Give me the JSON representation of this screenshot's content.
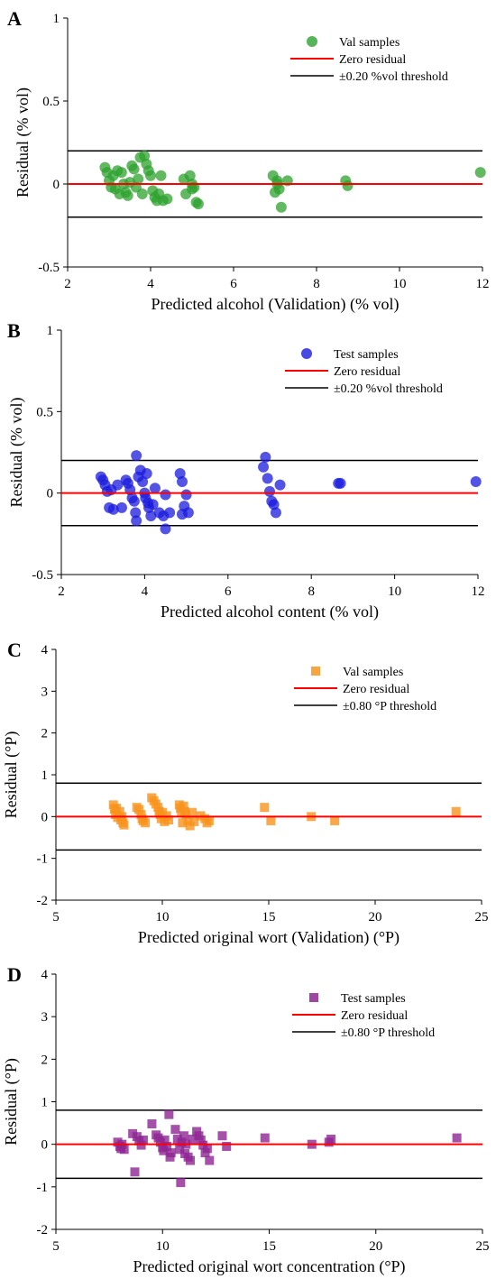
{
  "chart_data": [
    {
      "panel_label": "A",
      "type": "scatter",
      "xlabel": "Predicted alcohol (Validation) (% vol)",
      "ylabel": "Residual (% vol)",
      "xlim": [
        2,
        12
      ],
      "ylim": [
        -0.5,
        1
      ],
      "xticks": [
        2,
        4,
        6,
        8,
        10,
        12
      ],
      "yticks": [
        -0.5,
        0,
        0.5,
        1
      ],
      "ytick_labels": [
        "-0.5",
        "0",
        "0.5",
        "1"
      ],
      "marker": "circle",
      "marker_color": "#2ea12e",
      "legend": {
        "position": "top-right",
        "samples_label": "Val samples",
        "zero_label": "Zero residual",
        "threshold_label": "±0.20 %vol threshold"
      },
      "zero_line": 0,
      "zero_line_color": "#ff0000",
      "threshold": 0.2,
      "threshold_color": "#000000",
      "series": [
        {
          "name": "Val samples",
          "points": [
            [
              2.9,
              0.1
            ],
            [
              2.95,
              0.07
            ],
            [
              3.0,
              0.02
            ],
            [
              3.05,
              -0.02
            ],
            [
              3.1,
              0.05
            ],
            [
              3.15,
              -0.03
            ],
            [
              3.2,
              0.08
            ],
            [
              3.25,
              -0.06
            ],
            [
              3.3,
              0.07
            ],
            [
              3.35,
              0.0
            ],
            [
              3.4,
              -0.05
            ],
            [
              3.45,
              -0.07
            ],
            [
              3.5,
              0.01
            ],
            [
              3.55,
              0.11
            ],
            [
              3.6,
              0.09
            ],
            [
              3.65,
              -0.02
            ],
            [
              3.7,
              0.03
            ],
            [
              3.75,
              0.16
            ],
            [
              3.8,
              -0.06
            ],
            [
              3.85,
              0.17
            ],
            [
              3.9,
              0.12
            ],
            [
              3.95,
              0.08
            ],
            [
              4.0,
              0.05
            ],
            [
              4.05,
              -0.04
            ],
            [
              4.1,
              -0.08
            ],
            [
              4.15,
              -0.1
            ],
            [
              4.2,
              -0.06
            ],
            [
              4.25,
              0.05
            ],
            [
              4.3,
              -0.1
            ],
            [
              4.4,
              -0.09
            ],
            [
              4.8,
              0.03
            ],
            [
              4.85,
              -0.06
            ],
            [
              4.95,
              0.05
            ],
            [
              5.0,
              0.0
            ],
            [
              5.0,
              -0.03
            ],
            [
              5.05,
              -0.02
            ],
            [
              5.1,
              -0.11
            ],
            [
              5.15,
              -0.12
            ],
            [
              6.95,
              0.05
            ],
            [
              7.0,
              -0.05
            ],
            [
              7.05,
              0.0
            ],
            [
              7.05,
              0.02
            ],
            [
              7.1,
              -0.03
            ],
            [
              7.15,
              -0.14
            ],
            [
              7.3,
              0.02
            ],
            [
              8.7,
              0.02
            ],
            [
              8.75,
              -0.01
            ],
            [
              11.95,
              0.07
            ]
          ]
        }
      ]
    },
    {
      "panel_label": "B",
      "type": "scatter",
      "xlabel": "Predicted alcohol content (% vol)",
      "ylabel": "Residual (% vol)",
      "xlim": [
        2,
        12
      ],
      "ylim": [
        -0.5,
        1
      ],
      "xticks": [
        2,
        4,
        6,
        8,
        10,
        12
      ],
      "yticks": [
        -0.5,
        0,
        0.5,
        1
      ],
      "ytick_labels": [
        "-0.5",
        "0",
        "0.5",
        "1"
      ],
      "marker": "circle",
      "marker_color": "#1a1add",
      "legend": {
        "position": "top-right",
        "samples_label": "Test samples",
        "zero_label": "Zero residual",
        "threshold_label": "±0.20 %vol threshold"
      },
      "zero_line": 0,
      "zero_line_color": "#ff0000",
      "threshold": 0.2,
      "threshold_color": "#000000",
      "series": [
        {
          "name": "Test samples",
          "points": [
            [
              2.95,
              0.1
            ],
            [
              3.0,
              0.08
            ],
            [
              3.05,
              0.05
            ],
            [
              3.1,
              0.01
            ],
            [
              3.15,
              -0.09
            ],
            [
              3.2,
              0.02
            ],
            [
              3.25,
              -0.1
            ],
            [
              3.35,
              0.05
            ],
            [
              3.45,
              -0.09
            ],
            [
              3.55,
              0.08
            ],
            [
              3.6,
              0.06
            ],
            [
              3.65,
              0.02
            ],
            [
              3.7,
              -0.03
            ],
            [
              3.75,
              -0.05
            ],
            [
              3.78,
              -0.12
            ],
            [
              3.8,
              0.23
            ],
            [
              3.8,
              -0.17
            ],
            [
              3.85,
              0.1
            ],
            [
              3.9,
              0.14
            ],
            [
              3.95,
              0.07
            ],
            [
              4.0,
              0.0
            ],
            [
              4.02,
              -0.03
            ],
            [
              4.05,
              0.12
            ],
            [
              4.08,
              -0.06
            ],
            [
              4.1,
              -0.09
            ],
            [
              4.15,
              -0.14
            ],
            [
              4.2,
              -0.07
            ],
            [
              4.25,
              0.03
            ],
            [
              4.35,
              -0.12
            ],
            [
              4.45,
              -0.14
            ],
            [
              4.5,
              -0.01
            ],
            [
              4.5,
              -0.22
            ],
            [
              4.6,
              -0.12
            ],
            [
              4.85,
              0.12
            ],
            [
              4.9,
              0.07
            ],
            [
              4.9,
              -0.13
            ],
            [
              4.95,
              -0.08
            ],
            [
              5.0,
              -0.01
            ],
            [
              5.05,
              -0.12
            ],
            [
              6.85,
              0.16
            ],
            [
              6.9,
              0.22
            ],
            [
              6.95,
              0.09
            ],
            [
              7.0,
              0.01
            ],
            [
              7.05,
              -0.05
            ],
            [
              7.1,
              -0.07
            ],
            [
              7.15,
              -0.12
            ],
            [
              7.25,
              0.05
            ],
            [
              8.65,
              0.06
            ],
            [
              8.7,
              0.06
            ],
            [
              11.95,
              0.07
            ]
          ]
        }
      ]
    },
    {
      "panel_label": "C",
      "type": "scatter",
      "xlabel": "Predicted original wort (Validation) (°P)",
      "ylabel": "Residual (°P)",
      "xlim": [
        5,
        25
      ],
      "ylim": [
        -2,
        4
      ],
      "xticks": [
        5,
        10,
        15,
        20,
        25
      ],
      "yticks": [
        -2,
        -1,
        0,
        1,
        2,
        3,
        4
      ],
      "ytick_labels": [
        "-2",
        "-1",
        "0",
        "1",
        "2",
        "3",
        "4"
      ],
      "marker": "square",
      "marker_color": "#f7941d",
      "legend": {
        "position": "top-right",
        "samples_label": "Val samples",
        "zero_label": "Zero residual",
        "threshold_label": "±0.80 °P threshold"
      },
      "zero_line": 0,
      "zero_line_color": "#ff0000",
      "threshold": 0.8,
      "threshold_color": "#000000",
      "series": [
        {
          "name": "Val samples",
          "points": [
            [
              7.7,
              0.28
            ],
            [
              7.75,
              0.18
            ],
            [
              7.8,
              0.05
            ],
            [
              7.85,
              0.2
            ],
            [
              7.9,
              -0.02
            ],
            [
              8.0,
              0.12
            ],
            [
              8.05,
              -0.08
            ],
            [
              8.1,
              0.0
            ],
            [
              8.15,
              -0.15
            ],
            [
              8.2,
              -0.2
            ],
            [
              8.8,
              0.22
            ],
            [
              8.9,
              0.17
            ],
            [
              9.0,
              0.05
            ],
            [
              9.05,
              -0.05
            ],
            [
              9.1,
              -0.1
            ],
            [
              9.2,
              -0.15
            ],
            [
              9.5,
              0.45
            ],
            [
              9.6,
              0.38
            ],
            [
              9.7,
              0.3
            ],
            [
              9.8,
              0.22
            ],
            [
              9.85,
              0.12
            ],
            [
              9.9,
              0.05
            ],
            [
              9.95,
              -0.05
            ],
            [
              10.0,
              0.1
            ],
            [
              10.1,
              -0.12
            ],
            [
              10.2,
              0.02
            ],
            [
              10.3,
              -0.08
            ],
            [
              10.8,
              0.28
            ],
            [
              10.85,
              0.2
            ],
            [
              10.9,
              0.1
            ],
            [
              10.95,
              -0.15
            ],
            [
              11.0,
              0.25
            ],
            [
              11.05,
              0.12
            ],
            [
              11.1,
              0.05
            ],
            [
              11.2,
              -0.1
            ],
            [
              11.3,
              -0.22
            ],
            [
              11.4,
              0.1
            ],
            [
              11.5,
              -0.12
            ],
            [
              11.8,
              0.02
            ],
            [
              12.0,
              -0.05
            ],
            [
              12.1,
              -0.15
            ],
            [
              12.2,
              -0.1
            ],
            [
              14.8,
              0.22
            ],
            [
              15.1,
              -0.1
            ],
            [
              17.0,
              0.0
            ],
            [
              18.1,
              -0.1
            ],
            [
              23.8,
              0.12
            ]
          ]
        }
      ]
    },
    {
      "panel_label": "D",
      "type": "scatter",
      "xlabel": "Predicted original wort concentration (°P)",
      "ylabel": "Residual (°P)",
      "xlim": [
        5,
        25
      ],
      "ylim": [
        -2,
        4
      ],
      "xticks": [
        5,
        10,
        15,
        20,
        25
      ],
      "yticks": [
        -2,
        -1,
        0,
        1,
        2,
        3,
        4
      ],
      "ytick_labels": [
        "-2",
        "-1",
        "0",
        "1",
        "2",
        "3",
        "4"
      ],
      "marker": "square",
      "marker_color": "#8e2594",
      "legend": {
        "position": "top-right",
        "samples_label": "Test samples",
        "zero_label": "Zero residual",
        "threshold_label": "±0.80 °P threshold"
      },
      "zero_line": 0,
      "zero_line_color": "#ff0000",
      "threshold": 0.8,
      "threshold_color": "#000000",
      "series": [
        {
          "name": "Test samples",
          "points": [
            [
              7.9,
              0.05
            ],
            [
              8.0,
              -0.05
            ],
            [
              8.05,
              -0.1
            ],
            [
              8.1,
              0.0
            ],
            [
              8.2,
              -0.12
            ],
            [
              8.6,
              0.25
            ],
            [
              8.7,
              -0.65
            ],
            [
              8.8,
              0.18
            ],
            [
              8.9,
              0.08
            ],
            [
              9.0,
              -0.02
            ],
            [
              9.1,
              0.1
            ],
            [
              9.5,
              0.48
            ],
            [
              9.7,
              0.22
            ],
            [
              9.8,
              0.15
            ],
            [
              9.9,
              0.05
            ],
            [
              10.0,
              -0.08
            ],
            [
              10.05,
              -0.15
            ],
            [
              10.1,
              0.1
            ],
            [
              10.2,
              -0.05
            ],
            [
              10.3,
              0.7
            ],
            [
              10.35,
              -0.3
            ],
            [
              10.4,
              -0.2
            ],
            [
              10.6,
              0.35
            ],
            [
              10.7,
              0.12
            ],
            [
              10.8,
              -0.12
            ],
            [
              10.85,
              -0.9
            ],
            [
              10.9,
              0.05
            ],
            [
              11.0,
              0.2
            ],
            [
              11.05,
              -0.22
            ],
            [
              11.1,
              0.0
            ],
            [
              11.2,
              -0.3
            ],
            [
              11.3,
              -0.38
            ],
            [
              11.4,
              0.12
            ],
            [
              11.6,
              0.3
            ],
            [
              11.7,
              0.2
            ],
            [
              11.8,
              0.1
            ],
            [
              11.9,
              -0.02
            ],
            [
              12.0,
              -0.2
            ],
            [
              12.1,
              -0.1
            ],
            [
              12.2,
              -0.38
            ],
            [
              12.8,
              0.2
            ],
            [
              13.0,
              -0.05
            ],
            [
              14.8,
              0.15
            ],
            [
              17.0,
              0.0
            ],
            [
              17.8,
              0.05
            ],
            [
              17.9,
              0.12
            ],
            [
              23.8,
              0.15
            ]
          ]
        }
      ]
    }
  ]
}
